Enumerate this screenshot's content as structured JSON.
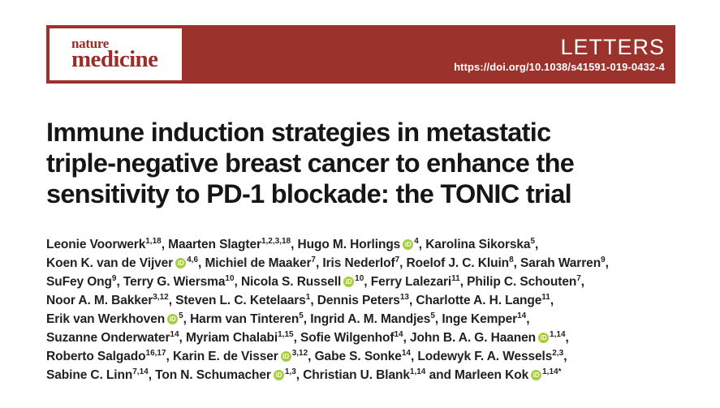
{
  "theme": {
    "bar_color": "#9b322c",
    "logo_color": "#9b2f28",
    "orcid_color": "#A6CE39",
    "page_background": "#ffffff",
    "title_color": "#161616",
    "author_text_color": "#231f20"
  },
  "header": {
    "journal_name_small": "nature",
    "journal_name_large": "medicine",
    "category": "LETTERS",
    "doi": "https://doi.org/10.1038/s41591-019-0432-4"
  },
  "article": {
    "title_lines": [
      "Immune induction strategies in metastatic",
      "triple-negative breast cancer to enhance the",
      "sensitivity to PD-1 blockade: the TONIC trial"
    ]
  },
  "orcid": {
    "label": "iD"
  },
  "authors": {
    "lines": [
      [
        {
          "name": "Leonie Voorwerk",
          "sup": "1,18",
          "orcid": false,
          "tail": ", "
        },
        {
          "name": "Maarten Slagter",
          "sup": "1,2,3,18",
          "orcid": false,
          "tail": ", "
        },
        {
          "name": "Hugo M. Horlings",
          "sup": "4",
          "orcid": true,
          "tail": ", "
        },
        {
          "name": "Karolina Sikorska",
          "sup": "5",
          "orcid": false,
          "tail": ","
        }
      ],
      [
        {
          "name": "Koen K. van de Vijver",
          "sup": "4,6",
          "orcid": true,
          "tail": ", "
        },
        {
          "name": "Michiel de Maaker",
          "sup": "7",
          "orcid": false,
          "tail": ", "
        },
        {
          "name": "Iris Nederlof",
          "sup": "7",
          "orcid": false,
          "tail": ", "
        },
        {
          "name": "Roelof J. C. Kluin",
          "sup": "8",
          "orcid": false,
          "tail": ", "
        },
        {
          "name": "Sarah Warren",
          "sup": "9",
          "orcid": false,
          "tail": ","
        }
      ],
      [
        {
          "name": "SuFey Ong",
          "sup": "9",
          "orcid": false,
          "tail": ", "
        },
        {
          "name": "Terry G. Wiersma",
          "sup": "10",
          "orcid": false,
          "tail": ", "
        },
        {
          "name": "Nicola S. Russell",
          "sup": "10",
          "orcid": true,
          "tail": ", "
        },
        {
          "name": "Ferry Lalezari",
          "sup": "11",
          "orcid": false,
          "tail": ", "
        },
        {
          "name": "Philip C. Schouten",
          "sup": "7",
          "orcid": false,
          "tail": ","
        }
      ],
      [
        {
          "name": "Noor A. M. Bakker",
          "sup": "3,12",
          "orcid": false,
          "tail": ", "
        },
        {
          "name": "Steven L. C. Ketelaars",
          "sup": "1",
          "orcid": false,
          "tail": ", "
        },
        {
          "name": "Dennis Peters",
          "sup": "13",
          "orcid": false,
          "tail": ", "
        },
        {
          "name": "Charlotte A. H. Lange",
          "sup": "11",
          "orcid": false,
          "tail": ","
        }
      ],
      [
        {
          "name": "Erik van Werkhoven",
          "sup": "5",
          "orcid": true,
          "tail": ", "
        },
        {
          "name": "Harm van Tinteren",
          "sup": "5",
          "orcid": false,
          "tail": ", "
        },
        {
          "name": "Ingrid A. M. Mandjes",
          "sup": "5",
          "orcid": false,
          "tail": ", "
        },
        {
          "name": "Inge Kemper",
          "sup": "14",
          "orcid": false,
          "tail": ","
        }
      ],
      [
        {
          "name": "Suzanne Onderwater",
          "sup": "14",
          "orcid": false,
          "tail": ", "
        },
        {
          "name": "Myriam Chalabi",
          "sup": "1,15",
          "orcid": false,
          "tail": ", "
        },
        {
          "name": "Sofie Wilgenhof",
          "sup": "14",
          "orcid": false,
          "tail": ", "
        },
        {
          "name": "John B. A. G. Haanen",
          "sup": "1,14",
          "orcid": true,
          "tail": ","
        }
      ],
      [
        {
          "name": "Roberto Salgado",
          "sup": "16,17",
          "orcid": false,
          "tail": ", "
        },
        {
          "name": "Karin E. de Visser",
          "sup": "3,12",
          "orcid": true,
          "tail": ", "
        },
        {
          "name": "Gabe S. Sonke",
          "sup": "14",
          "orcid": false,
          "tail": ", "
        },
        {
          "name": "Lodewyk F. A. Wessels",
          "sup": "2,3",
          "orcid": false,
          "tail": ","
        }
      ],
      [
        {
          "name": "Sabine C. Linn",
          "sup": "7,14",
          "orcid": false,
          "tail": ", "
        },
        {
          "name": "Ton N. Schumacher",
          "sup": "1,3",
          "orcid": true,
          "tail": ", "
        },
        {
          "name": "Christian U. Blank",
          "sup": "1,14",
          "orcid": false,
          "tail": " and "
        },
        {
          "name": "Marleen Kok",
          "sup": "1,14*",
          "orcid": true,
          "tail": ""
        }
      ]
    ]
  }
}
